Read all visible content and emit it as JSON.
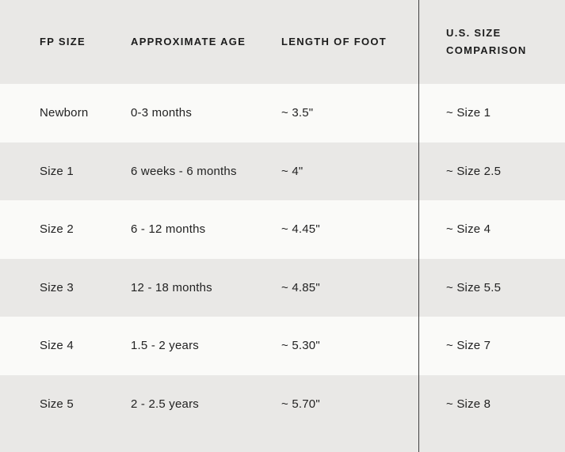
{
  "table": {
    "headers": {
      "fp_size": "FP Size",
      "age": "Approximate Age",
      "foot_length": "Length of Foot",
      "us_size": "U.S. Size Comparison"
    },
    "rows": [
      {
        "fp_size": "Newborn",
        "age": "0-3 months",
        "foot_length": "~ 3.5\"",
        "us_size": "~ Size 1"
      },
      {
        "fp_size": "Size 1",
        "age": "6 weeks - 6 months",
        "foot_length": "~ 4\"",
        "us_size": "~ Size 2.5"
      },
      {
        "fp_size": "Size 2",
        "age": "6 - 12 months",
        "foot_length": "~ 4.45\"",
        "us_size": "~ Size 4"
      },
      {
        "fp_size": "Size 3",
        "age": "12 - 18 months",
        "foot_length": "~ 4.85\"",
        "us_size": "~ Size 5.5"
      },
      {
        "fp_size": "Size 4",
        "age": "1.5 - 2 years",
        "foot_length": "~ 5.30\"",
        "us_size": "~ Size 7"
      },
      {
        "fp_size": "Size 5",
        "age": "2 - 2.5 years",
        "foot_length": "~ 5.70\"",
        "us_size": "~ Size 8"
      }
    ]
  },
  "colors": {
    "row_dark": "#e9e8e6",
    "row_light": "#fafaf8",
    "divider": "#3f3f3f",
    "header_text": "#1c1c1c",
    "text": "#222222"
  }
}
